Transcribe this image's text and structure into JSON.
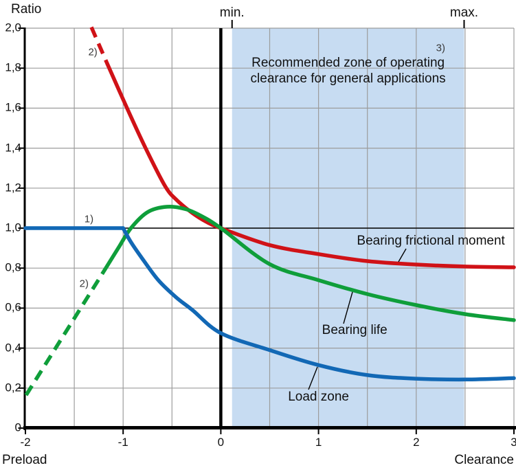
{
  "chart_data": {
    "type": "line",
    "title": "",
    "ylabel": "Ratio",
    "xlabel_left": "Preload",
    "xlabel_right": "Clearance",
    "xlim": [
      -2,
      3
    ],
    "ylim": [
      0,
      2
    ],
    "grid": {
      "x_step": 0.5,
      "y_step": 0.2,
      "on": true,
      "color": "#9c9c9c"
    },
    "reference_line_y": 1.0,
    "x_ticks": [
      {
        "v": -2,
        "label": "-2"
      },
      {
        "v": -1,
        "label": "-1"
      },
      {
        "v": 0,
        "label": "0"
      },
      {
        "v": 1,
        "label": "1"
      },
      {
        "v": 2,
        "label": "2"
      },
      {
        "v": 3,
        "label": "3"
      }
    ],
    "y_ticks": [
      {
        "v": 2.0,
        "label": "2,0"
      },
      {
        "v": 1.8,
        "label": "1,8"
      },
      {
        "v": 1.6,
        "label": "1,6"
      },
      {
        "v": 1.4,
        "label": "1,4"
      },
      {
        "v": 1.2,
        "label": "1,2"
      },
      {
        "v": 1.0,
        "label": "1,0"
      },
      {
        "v": 0.8,
        "label": "0,8"
      },
      {
        "v": 0.6,
        "label": "0,6"
      },
      {
        "v": 0.4,
        "label": "0,4"
      },
      {
        "v": 0.2,
        "label": "0,2"
      },
      {
        "v": 0.0,
        "label": "0"
      }
    ],
    "zone": {
      "x_min": 0.115,
      "x_max": 2.49,
      "min_label": "min.",
      "max_label": "max.",
      "text_line1": "Recommended zone of operating",
      "text_line2": "clearance for general applications",
      "color": "#c7dcf2"
    },
    "series": [
      {
        "name": "Bearing frictional moment",
        "color": "#d01217",
        "segments": [
          {
            "style": "dashed",
            "points": [
              [
                -1.325,
                2.005
              ],
              [
                -1.16,
                1.82
              ]
            ]
          },
          {
            "style": "solid",
            "points": [
              [
                -1.16,
                1.82
              ],
              [
                -0.96,
                1.6
              ],
              [
                -0.77,
                1.4
              ],
              [
                -0.57,
                1.21
              ],
              [
                -0.45,
                1.14
              ],
              [
                -0.29,
                1.075
              ],
              [
                -0.15,
                1.032
              ],
              [
                0,
                1.0
              ],
              [
                0.5,
                0.915
              ],
              [
                1.0,
                0.87
              ],
              [
                1.5,
                0.835
              ],
              [
                2.0,
                0.818
              ],
              [
                2.5,
                0.808
              ],
              [
                3.0,
                0.804
              ]
            ]
          }
        ]
      },
      {
        "name": "Bearing life",
        "color": "#0f9e3a",
        "segments": [
          {
            "style": "dashed",
            "points": [
              [
                -1.993,
                0.165
              ],
              [
                -1.19,
                0.79
              ]
            ]
          },
          {
            "style": "solid",
            "points": [
              [
                -1.19,
                0.79
              ],
              [
                -1.05,
                0.9
              ],
              [
                -0.92,
                1.0
              ],
              [
                -0.75,
                1.08
              ],
              [
                -0.55,
                1.107
              ],
              [
                -0.36,
                1.095
              ],
              [
                -0.19,
                1.058
              ],
              [
                0,
                1.0
              ],
              [
                0.5,
                0.82
              ],
              [
                1.0,
                0.74
              ],
              [
                1.5,
                0.67
              ],
              [
                2.0,
                0.615
              ],
              [
                2.5,
                0.57
              ],
              [
                3.0,
                0.54
              ]
            ]
          }
        ]
      },
      {
        "name": "Load zone",
        "color": "#1268b5",
        "segments": [
          {
            "style": "solid",
            "points": [
              [
                -2,
                1.0
              ],
              [
                -1,
                1.0
              ]
            ]
          },
          {
            "style": "solid",
            "points": [
              [
                -1,
                1.0
              ],
              [
                -0.92,
                0.93
              ],
              [
                -0.8,
                0.845
              ],
              [
                -0.64,
                0.74
              ],
              [
                -0.46,
                0.655
              ],
              [
                -0.29,
                0.59
              ],
              [
                0,
                0.475
              ],
              [
                0.5,
                0.39
              ],
              [
                1.0,
                0.315
              ],
              [
                1.5,
                0.265
              ],
              [
                2.0,
                0.247
              ],
              [
                2.5,
                0.243
              ],
              [
                3.0,
                0.25
              ]
            ]
          }
        ]
      }
    ],
    "annotations": [
      {
        "label": "2)",
        "x": -1.31,
        "y": 1.88
      },
      {
        "label": "1)",
        "x": -1.35,
        "y": 1.045
      },
      {
        "label": "2)",
        "x": -1.4,
        "y": 0.72
      },
      {
        "label": "3)",
        "x": 2.25,
        "y": 1.9
      }
    ],
    "curve_labels": [
      {
        "text": "Bearing frictional moment",
        "x": 2.15,
        "y": 0.935
      },
      {
        "text": "Bearing life",
        "x": 1.37,
        "y": 0.488
      },
      {
        "text": "Load zone",
        "x": 1.0,
        "y": 0.155
      }
    ]
  },
  "colors": {
    "background": "#ffffff",
    "axis": "#000000",
    "grid": "#9c9c9c",
    "text": "#111111",
    "annotation": "#3a3a3a",
    "zone_fill": "#c7dcf2",
    "red_curve": "#d01217",
    "green_curve": "#0f9e3a",
    "blue_curve": "#1268b5"
  }
}
